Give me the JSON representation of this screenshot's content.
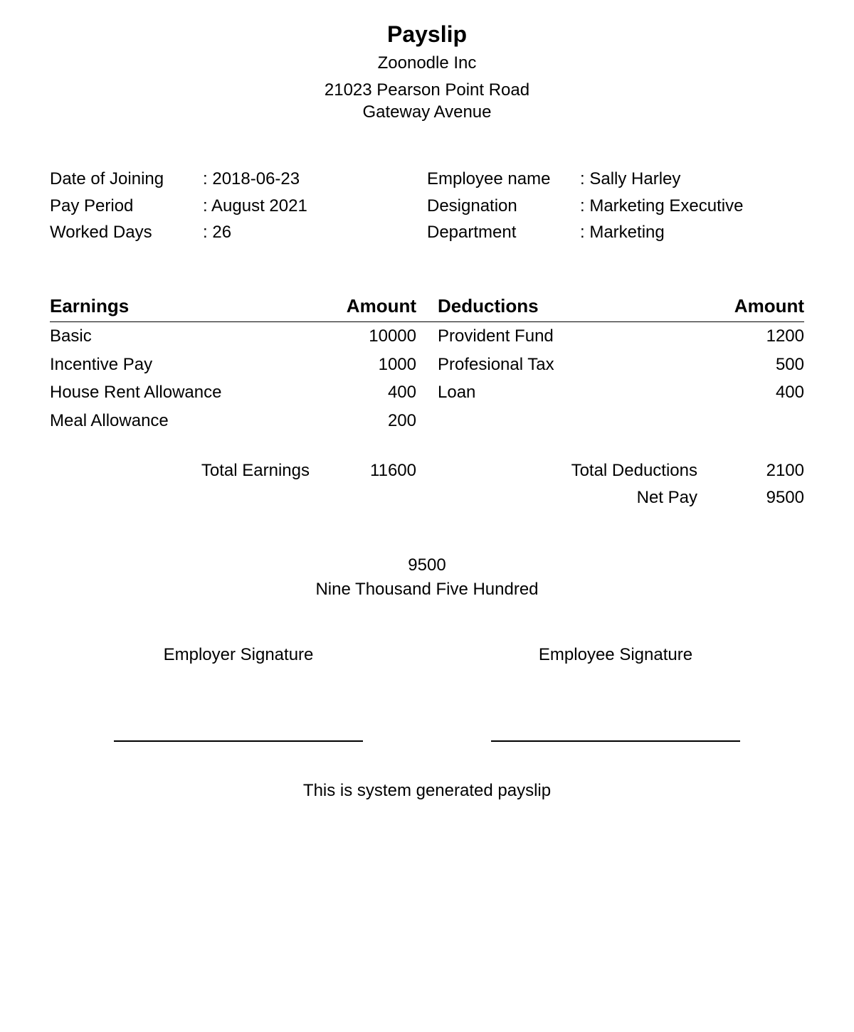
{
  "header": {
    "title": "Payslip",
    "company": "Zoonodle Inc",
    "address_line1": "21023 Pearson Point Road",
    "address_line2": "Gateway Avenue"
  },
  "info_left": {
    "labels": {
      "doj": "Date of Joining",
      "period": "Pay Period",
      "days": "Worked Days"
    },
    "values": {
      "doj": "2018-06-23",
      "period": "August 2021",
      "days": "26"
    }
  },
  "info_right": {
    "labels": {
      "name": "Employee name",
      "desig": "Designation",
      "dept": "Department"
    },
    "values": {
      "name": "Sally Harley",
      "desig": "Marketing Executive",
      "dept": "Marketing"
    }
  },
  "table": {
    "earnings_header": "Earnings",
    "deductions_header": "Deductions",
    "amount_header": "Amount",
    "earnings": [
      {
        "label": "Basic",
        "amount": "10000"
      },
      {
        "label": "Incentive Pay",
        "amount": "1000"
      },
      {
        "label": "House Rent Allowance",
        "amount": "400"
      },
      {
        "label": "Meal Allowance",
        "amount": "200"
      }
    ],
    "deductions": [
      {
        "label": "Provident Fund",
        "amount": "1200"
      },
      {
        "label": "Profesional Tax",
        "amount": "500"
      },
      {
        "label": "Loan",
        "amount": "400"
      }
    ]
  },
  "totals": {
    "total_earnings_label": "Total Earnings",
    "total_earnings_value": "11600",
    "total_deductions_label": "Total Deductions",
    "total_deductions_value": "2100",
    "net_pay_label": "Net Pay",
    "net_pay_value": "9500"
  },
  "net_words": {
    "amount": "9500",
    "words": "Nine Thousand Five Hundred"
  },
  "signatures": {
    "employer": "Employer Signature",
    "employee": "Employee Signature"
  },
  "footer": "This is system generated payslip"
}
